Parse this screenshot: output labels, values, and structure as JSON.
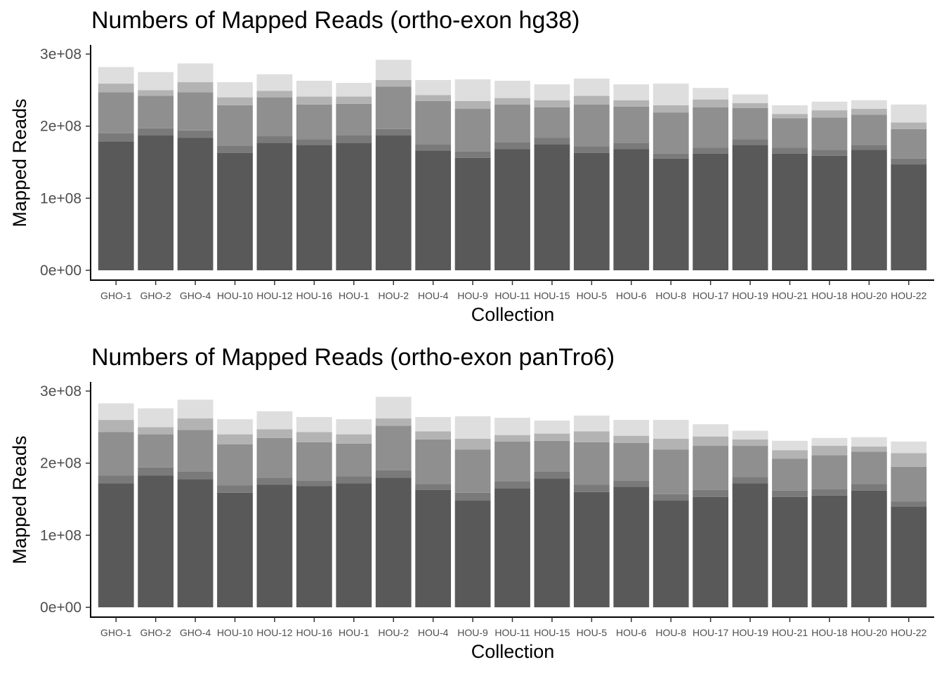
{
  "colors": {
    "segments": [
      "#595959",
      "#7a7a7a",
      "#8f8f8f",
      "#b3b3b3",
      "#dedede"
    ],
    "axis": "#000000",
    "tick_text": "#4d4d4d"
  },
  "chart_data": [
    {
      "type": "bar",
      "stacked": true,
      "title": "Numbers of Mapped Reads (ortho-exon hg38)",
      "xlabel": "Collection",
      "ylabel": "Mapped Reads",
      "ylim": [
        0,
        300000000
      ],
      "yticks": [
        0,
        100000000,
        200000000,
        300000000
      ],
      "ytick_labels": [
        "0e+00",
        "1e+08",
        "2e+08",
        "3e+08"
      ],
      "grid": false,
      "categories": [
        "GHO-1",
        "GHO-2",
        "GHO-4",
        "HOU-10",
        "HOU-12",
        "HOU-16",
        "HOU-1",
        "HOU-2",
        "HOU-4",
        "HOU-9",
        "HOU-11",
        "HOU-15",
        "HOU-5",
        "HOU-6",
        "HOU-8",
        "HOU-17",
        "HOU-19",
        "HOU-21",
        "HOU-18",
        "HOU-20",
        "HOU-22"
      ],
      "series": [
        {
          "values": [
            179000000,
            187000000,
            184000000,
            163000000,
            177000000,
            174000000,
            177000000,
            187000000,
            166000000,
            156000000,
            168000000,
            175000000,
            163000000,
            168000000,
            155000000,
            162000000,
            174000000,
            162000000,
            159000000,
            167000000,
            147000000
          ]
        },
        {
          "values": [
            11000000,
            10000000,
            10000000,
            10000000,
            9000000,
            8000000,
            10000000,
            9000000,
            9000000,
            9000000,
            10000000,
            9000000,
            9000000,
            9000000,
            7000000,
            8000000,
            8000000,
            8000000,
            8000000,
            7000000,
            8000000
          ]
        },
        {
          "values": [
            57000000,
            45000000,
            53000000,
            56000000,
            54000000,
            48000000,
            44000000,
            59000000,
            60000000,
            59000000,
            52000000,
            42000000,
            58000000,
            50000000,
            57000000,
            56000000,
            43000000,
            41000000,
            45000000,
            42000000,
            41000000
          ]
        },
        {
          "values": [
            12000000,
            8000000,
            14000000,
            11000000,
            9000000,
            11000000,
            10000000,
            9000000,
            8000000,
            11000000,
            9000000,
            10000000,
            12000000,
            9000000,
            10000000,
            11000000,
            7000000,
            6000000,
            10000000,
            8000000,
            9000000
          ]
        },
        {
          "values": [
            23000000,
            25000000,
            26000000,
            21000000,
            23000000,
            22000000,
            19000000,
            28000000,
            21000000,
            30000000,
            24000000,
            22000000,
            24000000,
            22000000,
            30000000,
            16000000,
            12000000,
            12000000,
            12000000,
            12000000,
            25000000
          ]
        }
      ]
    },
    {
      "type": "bar",
      "stacked": true,
      "title": "Numbers of Mapped Reads (ortho-exon panTro6)",
      "xlabel": "Collection",
      "ylabel": "Mapped Reads",
      "ylim": [
        0,
        300000000
      ],
      "yticks": [
        0,
        100000000,
        200000000,
        300000000
      ],
      "ytick_labels": [
        "0e+00",
        "1e+08",
        "2e+08",
        "3e+08"
      ],
      "grid": false,
      "categories": [
        "GHO-1",
        "GHO-2",
        "GHO-4",
        "HOU-10",
        "HOU-12",
        "HOU-16",
        "HOU-1",
        "HOU-2",
        "HOU-4",
        "HOU-9",
        "HOU-11",
        "HOU-15",
        "HOU-5",
        "HOU-6",
        "HOU-8",
        "HOU-17",
        "HOU-19",
        "HOU-21",
        "HOU-18",
        "HOU-20",
        "HOU-22"
      ],
      "series": [
        {
          "values": [
            172000000,
            183000000,
            178000000,
            159000000,
            170000000,
            168000000,
            172000000,
            180000000,
            163000000,
            148000000,
            165000000,
            179000000,
            160000000,
            167000000,
            148000000,
            153000000,
            172000000,
            153000000,
            155000000,
            162000000,
            140000000
          ]
        },
        {
          "values": [
            11000000,
            11000000,
            10000000,
            10000000,
            10000000,
            8000000,
            10000000,
            10000000,
            8000000,
            11000000,
            10000000,
            9000000,
            10000000,
            9000000,
            9000000,
            10000000,
            9000000,
            9000000,
            9000000,
            9000000,
            7000000
          ]
        },
        {
          "values": [
            60000000,
            46000000,
            58000000,
            57000000,
            55000000,
            53000000,
            45000000,
            62000000,
            62000000,
            60000000,
            55000000,
            43000000,
            59000000,
            52000000,
            62000000,
            61000000,
            43000000,
            44000000,
            47000000,
            45000000,
            48000000
          ]
        },
        {
          "values": [
            17000000,
            10000000,
            16000000,
            14000000,
            12000000,
            14000000,
            13000000,
            10000000,
            11000000,
            15000000,
            9000000,
            10000000,
            15000000,
            10000000,
            15000000,
            13000000,
            9000000,
            12000000,
            13000000,
            7000000,
            19000000
          ]
        },
        {
          "values": [
            23000000,
            26000000,
            26000000,
            21000000,
            25000000,
            21000000,
            21000000,
            30000000,
            20000000,
            31000000,
            24000000,
            18000000,
            22000000,
            22000000,
            26000000,
            17000000,
            12000000,
            13000000,
            11000000,
            13000000,
            16000000
          ]
        }
      ]
    }
  ]
}
